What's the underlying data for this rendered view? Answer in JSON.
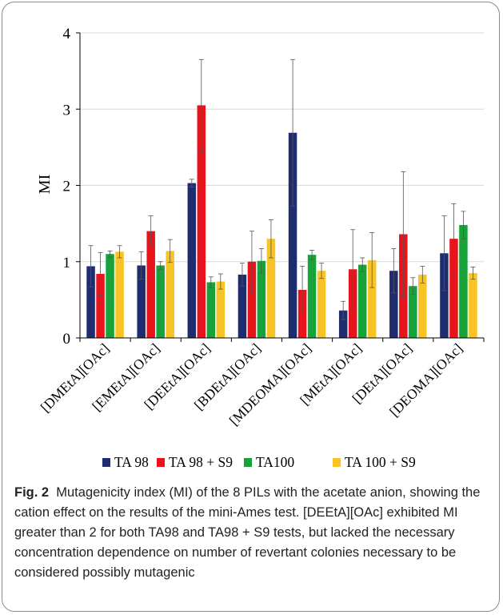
{
  "chart_data": {
    "type": "bar",
    "ylabel": "MI",
    "ylim": [
      0,
      4
    ],
    "yticks": [
      "0",
      "1",
      "2",
      "3",
      "4"
    ],
    "grid": true,
    "legend_position": "bottom",
    "categories": [
      "[DMEtA][OAc]",
      "[EMEtA][OAc]",
      "[DEEtA][OAc]",
      "[BDEtA][OAc]",
      "[MDEOMA][OAc]",
      "[MEtA][OAc]",
      "[DEtA][OAc]",
      "[DEOMA][OAc]"
    ],
    "series": [
      {
        "name": "TA 98",
        "color": "#1f2d6e",
        "values": [
          0.94,
          0.95,
          2.03,
          0.83,
          2.69,
          0.36,
          0.88,
          1.11
        ],
        "errors": [
          0.27,
          0.18,
          0.05,
          0.15,
          0.96,
          0.12,
          0.29,
          0.49
        ]
      },
      {
        "name": "TA 98 + S9",
        "color": "#e8141c",
        "values": [
          0.84,
          1.4,
          3.05,
          1.0,
          0.63,
          0.9,
          1.36,
          1.3
        ],
        "errors": [
          0.28,
          0.2,
          0.6,
          0.4,
          0.31,
          0.52,
          0.82,
          0.46
        ]
      },
      {
        "name": "TA100",
        "color": "#17a33a",
        "values": [
          1.1,
          0.95,
          0.73,
          1.01,
          1.09,
          0.96,
          0.68,
          1.48
        ],
        "errors": [
          0.04,
          0.05,
          0.07,
          0.16,
          0.06,
          0.09,
          0.11,
          0.18
        ]
      },
      {
        "name": "TA 100 + S9",
        "color": "#f7c325",
        "values": [
          1.13,
          1.14,
          0.74,
          1.3,
          0.88,
          1.02,
          0.83,
          0.85
        ],
        "errors": [
          0.08,
          0.15,
          0.1,
          0.25,
          0.1,
          0.36,
          0.11,
          0.08
        ]
      }
    ]
  },
  "caption": {
    "label": "Fig. 2",
    "text": "Mutagenicity index (MI) of the 8 PILs with the acetate anion, showing the cation effect on the results of the mini-Ames test. [DEEtA][OAc] exhibited MI greater than 2 for both TA98 and TA98 + S9 tests, but lacked the necessary concentration dependence on number of revertant colonies necessary to be considered possibly mutagenic"
  }
}
